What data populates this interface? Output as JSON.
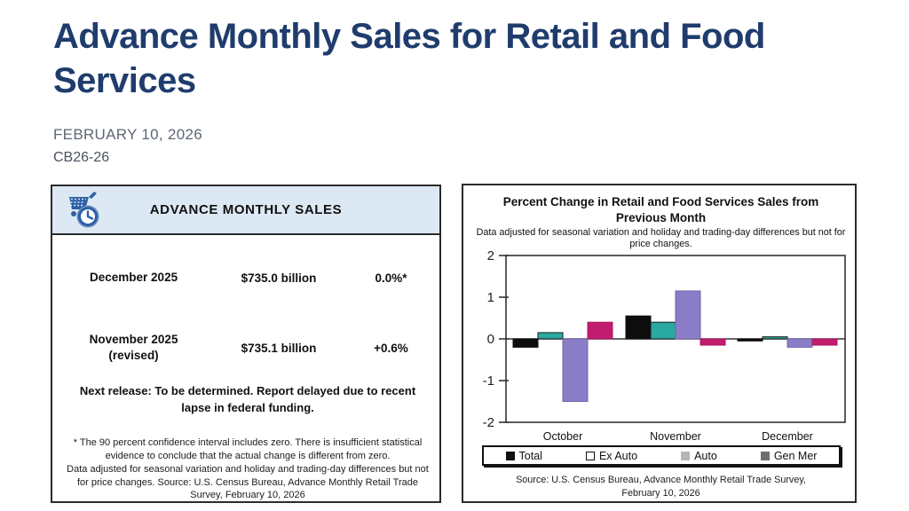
{
  "page": {
    "title": "Advance Monthly Sales for Retail and Food Services",
    "date": "FEBRUARY 10, 2026",
    "release_number": "CB26-26"
  },
  "sales_card": {
    "header": "ADVANCE MONTHLY SALES",
    "icon": "cart-clock-icon",
    "rows": [
      {
        "period": "December 2025",
        "value": "$735.0 billion",
        "change": "0.0%*"
      },
      {
        "period": "November 2025",
        "period2": "(revised)",
        "value": "$735.1 billion",
        "change": "+0.6%"
      }
    ],
    "next_release": "Next release: To be determined. Report delayed due to recent lapse in federal funding.",
    "footnote_line1": "* The 90 percent confidence interval includes zero. There is insufficient statistical evidence to conclude that the actual change is different from zero.",
    "footnote_line2": "Data adjusted for seasonal variation and holiday and trading-day differences but not for price changes. Source: U.S. Census Bureau, Advance Monthly Retail Trade Survey, February 10, 2026"
  },
  "chart_card": {
    "title": "Percent Change in Retail and Food Services Sales from Previous Month",
    "subtitle": "Data adjusted for seasonal variation and holiday and trading-day differences but not for price changes.",
    "source": "Source: U.S. Census Bureau, Advance Monthly Retail Trade Survey, February 10, 2026"
  },
  "chart_data": {
    "type": "bar",
    "title": "Percent Change in Retail and Food Services Sales from Previous Month",
    "subtitle": "Data adjusted for seasonal variation and holiday and trading-day differences but not for price changes.",
    "categories": [
      "October",
      "November",
      "December"
    ],
    "series": [
      {
        "name": "Total",
        "color": "#0d0d0d",
        "stroke": "#0d0d0d",
        "swatch_fill": "#111111",
        "swatch_border": "#111111",
        "values": [
          -0.2,
          0.55,
          -0.05
        ]
      },
      {
        "name": "Ex Auto",
        "color": "#2aa9a1",
        "stroke": "#1a1a1a",
        "swatch_fill": "#ffffff",
        "swatch_border": "#111111",
        "values": [
          0.15,
          0.4,
          0.05
        ]
      },
      {
        "name": "Auto",
        "color": "#8a7cc7",
        "stroke": "#7265ad",
        "swatch_fill": "#b5b5b5",
        "swatch_border": "#b5b5b5",
        "values": [
          -1.5,
          1.15,
          -0.2
        ]
      },
      {
        "name": "Gen Mer",
        "color": "#c11d6e",
        "stroke": "#a8185f",
        "swatch_fill": "#6e6e6e",
        "swatch_border": "#6e6e6e",
        "values": [
          0.4,
          -0.15,
          -0.15
        ]
      }
    ],
    "ylim": [
      -2,
      2
    ],
    "yticks": [
      2,
      1,
      0,
      -1,
      -2
    ],
    "grid": false,
    "legend_position": "bottom",
    "source": "Source: U.S. Census Bureau, Advance Monthly Retail Trade Survey, February 10, 2026",
    "colors": {
      "axis": "#333333",
      "bar_total": "#0d0d0d",
      "bar_ex_auto": "#2aa9a1",
      "bar_auto": "#8a7cc7",
      "bar_gen_mer": "#c11d6e"
    }
  }
}
